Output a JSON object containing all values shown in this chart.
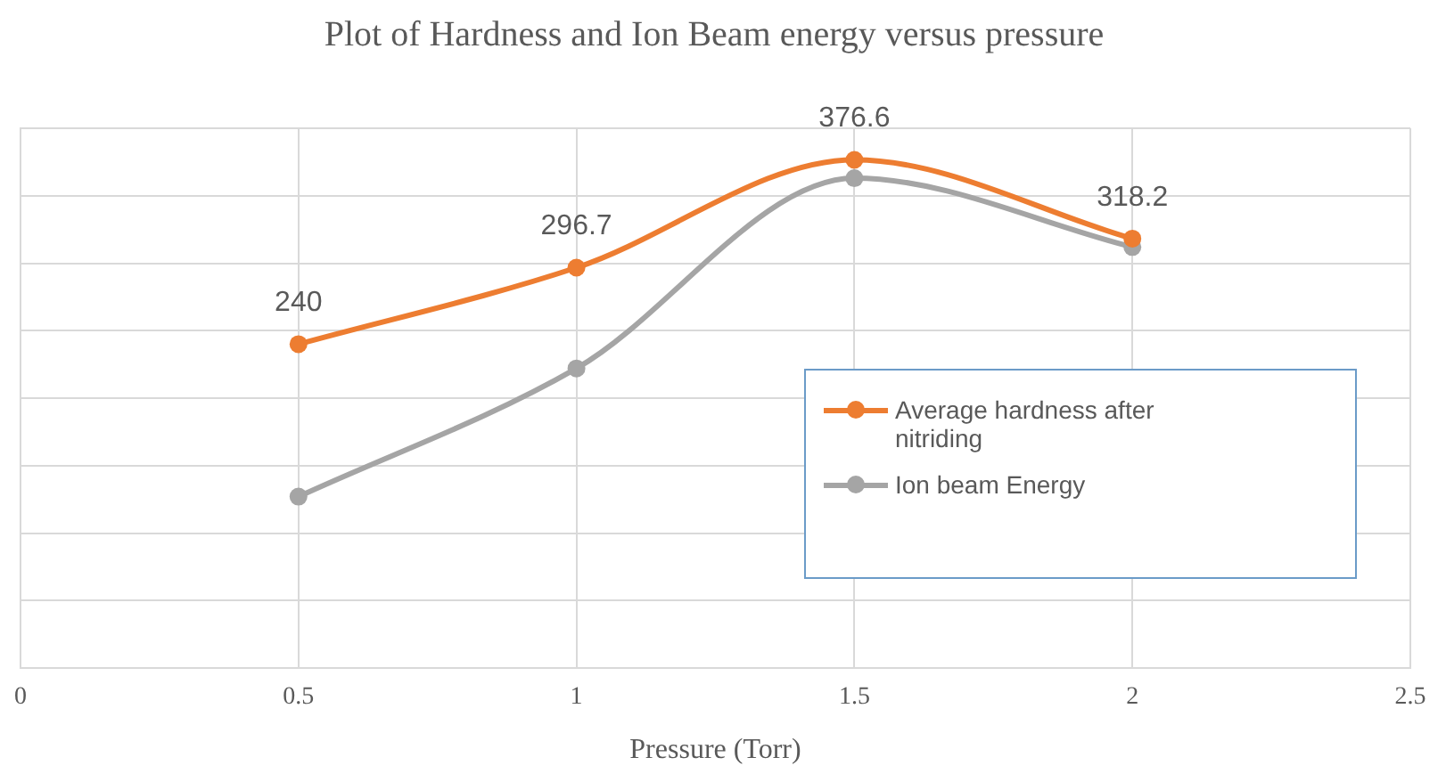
{
  "chart_data": {
    "type": "line",
    "title": "Plot of Hardness and Ion Beam energy versus pressure",
    "xlabel": "Pressure (Torr)",
    "x": [
      0.5,
      1,
      1.5,
      2
    ],
    "series": [
      {
        "name": "Average hardness after nitriding",
        "color": "#ed7d31",
        "values": [
          240,
          296.7,
          376.6,
          318.2
        ],
        "value_labels": [
          "240",
          "296.7",
          "376.6",
          "318.2"
        ]
      },
      {
        "name": "Ion beam Energy",
        "color": "#a5a5a5",
        "values": [
          127,
          222,
          363,
          312
        ]
      }
    ],
    "xlim": [
      0,
      2.5
    ],
    "xticks": [
      0,
      0.5,
      1,
      1.5,
      2,
      2.5
    ],
    "ylim": [
      0,
      400
    ],
    "yticks": [
      {
        "value": 0,
        "label": null
      },
      {
        "value": 50,
        "label": null
      },
      {
        "value": 100,
        "label": null
      },
      {
        "value": 150,
        "label": null
      },
      {
        "value": 200,
        "label": null
      },
      {
        "value": 250,
        "label": null
      },
      {
        "value": 300,
        "label": null
      },
      {
        "value": 350,
        "label": null
      },
      {
        "value": 400,
        "label": null
      }
    ],
    "tick_labels": "x",
    "grid": true,
    "legend": "right",
    "marker": "circle",
    "line_style": "solid"
  }
}
